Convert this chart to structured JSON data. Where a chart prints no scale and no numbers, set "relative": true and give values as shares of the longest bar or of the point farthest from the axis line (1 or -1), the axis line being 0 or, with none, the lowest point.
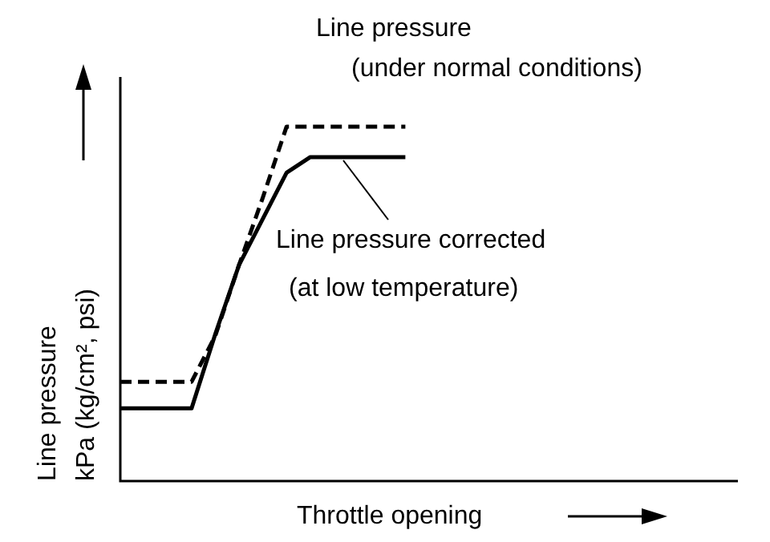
{
  "chart_data": {
    "type": "line",
    "relative": true,
    "xlabel": "Throttle opening",
    "ylabel": "Line pressure kPa (kg/cm², psi)",
    "marker": "none",
    "categories": [
      null,
      null,
      null,
      null,
      null,
      null,
      null,
      null,
      null,
      null,
      null,
      null,
      null,
      null,
      null,
      null,
      null,
      null,
      null,
      null,
      null,
      null,
      null,
      null,
      null,
      null,
      null
    ],
    "series": [
      {
        "name": "Line pressure (under normal conditions)",
        "color": "#000000",
        "line_style": "dashed",
        "values": [
          0.28,
          0.28,
          0.28,
          0.28,
          0.41,
          0.61,
          0.8,
          1,
          1,
          1,
          1,
          1,
          1,
          null,
          null,
          null,
          null,
          null,
          null,
          null,
          null,
          null,
          null,
          null,
          null,
          null,
          null
        ]
      },
      {
        "name": "Line pressure corrected (at low temperature)",
        "color": "#000000",
        "line_style": "solid",
        "values": [
          0.205,
          0.205,
          0.205,
          0.205,
          0.415,
          0.61,
          0.74,
          0.87,
          0.914,
          0.914,
          0.914,
          0.914,
          0.914,
          null,
          null,
          null,
          null,
          null,
          null,
          null,
          null,
          null,
          null,
          null,
          null,
          null,
          null
        ]
      }
    ]
  }
}
